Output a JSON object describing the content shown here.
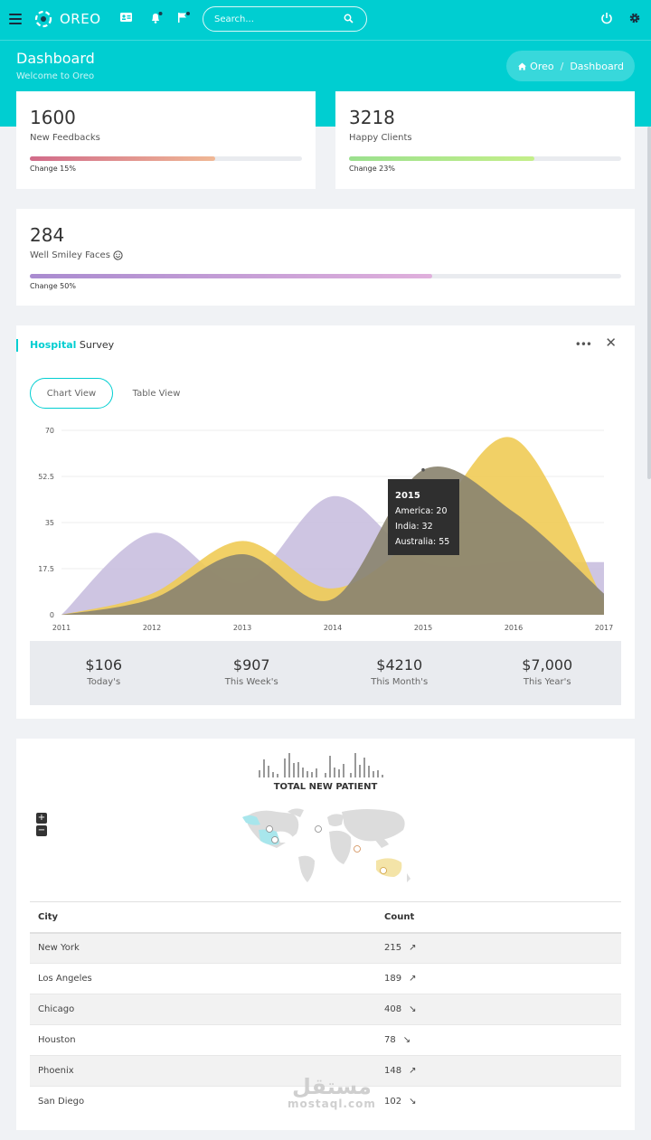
{
  "header": {
    "brand": "OREO",
    "search_placeholder": "Search...",
    "icons": [
      "menu-icon",
      "logo-icon",
      "contact-card-icon",
      "bell-icon",
      "flag-icon",
      "search-icon",
      "power-icon",
      "gear-icon"
    ]
  },
  "hero": {
    "title": "Dashboard",
    "subtitle": "Welcome to Oreo",
    "breadcrumb": {
      "home": "Oreo",
      "separator": "/",
      "current": "Dashboard"
    }
  },
  "stats": [
    {
      "value": "1600",
      "label": "New Feedbacks",
      "change": "Change 15%",
      "progress": 0.68,
      "gradient": [
        "#d16b8a",
        "#f0b895"
      ]
    },
    {
      "value": "3218",
      "label": "Happy Clients",
      "change": "Change 23%",
      "progress": 0.68,
      "gradient": [
        "#9be08e",
        "#c4ef8a"
      ]
    },
    {
      "value": "284",
      "label": "Well Smiley Faces",
      "change": "Change 50%",
      "progress": 0.68,
      "gradient": [
        "#a98bd0",
        "#e0b0dc"
      ]
    }
  ],
  "survey": {
    "title_strong": "Hospital",
    "title_rest": " Survey",
    "tabs": [
      "Chart View",
      "Table View"
    ],
    "active_tab": "Chart View",
    "totals": [
      {
        "amount": "$106",
        "label": "Today's"
      },
      {
        "amount": "$907",
        "label": "This Week's"
      },
      {
        "amount": "$4210",
        "label": "This Month's"
      },
      {
        "amount": "$7,000",
        "label": "This Year's"
      }
    ]
  },
  "chart_data": {
    "type": "area",
    "x": [
      "2011",
      "2012",
      "2013",
      "2014",
      "2015",
      "2016",
      "2017"
    ],
    "ylim": [
      0,
      70
    ],
    "yticks": [
      "0",
      "17.5",
      "35",
      "52.5",
      "70"
    ],
    "grid": true,
    "series": [
      {
        "name": "America",
        "color": "#c9bfdf",
        "values": [
          0,
          31,
          12,
          45,
          20,
          20,
          20
        ]
      },
      {
        "name": "India",
        "color": "#f0cb55",
        "values": [
          0,
          8,
          28,
          10,
          32,
          67,
          5
        ]
      },
      {
        "name": "Australia",
        "color": "#8b8470",
        "values": [
          0,
          6,
          23,
          6,
          55,
          39,
          8
        ]
      }
    ],
    "tooltip": {
      "title": "2015",
      "lines": [
        "America: 20",
        "India: 32",
        "Australia: 55"
      ]
    }
  },
  "patients": {
    "title": "TOTAL NEW PATIENT",
    "zoom_in": "+",
    "zoom_out": "−",
    "table": {
      "headers": [
        "City",
        "Count"
      ],
      "rows": [
        {
          "city": "New York",
          "count": "215",
          "trend": "up"
        },
        {
          "city": "Los Angeles",
          "count": "189",
          "trend": "up"
        },
        {
          "city": "Chicago",
          "count": "408",
          "trend": "down"
        },
        {
          "city": "Houston",
          "count": "78",
          "trend": "down"
        },
        {
          "city": "Phoenix",
          "count": "148",
          "trend": "up"
        },
        {
          "city": "San Diego",
          "count": "102",
          "trend": "down"
        }
      ]
    }
  },
  "watermark": {
    "arabic": "مستقل",
    "latin": "mostaql.com"
  },
  "colors": {
    "accent": "#00ced1",
    "page_bg": "#f0f2f5"
  }
}
